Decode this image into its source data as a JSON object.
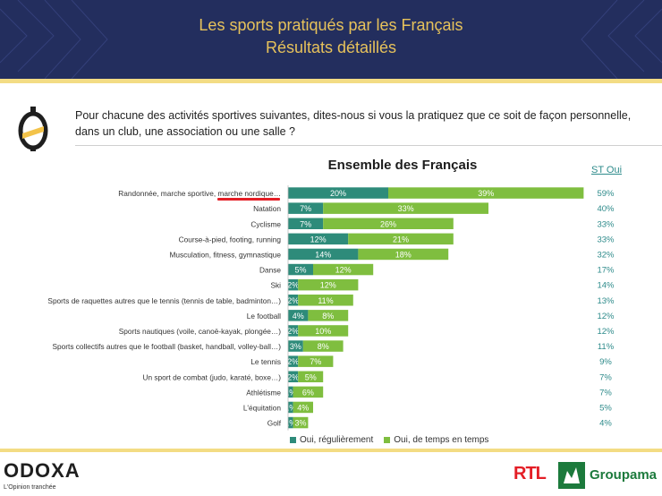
{
  "header": {
    "title_line1": "Les sports pratiqués par les Français",
    "title_line2": "Résultats détaillés"
  },
  "question": "Pour chacune des activités sportives suivantes, dites-nous si vous la pratiquez que ce soit de façon personnelle, dans un club, une association ou une salle ?",
  "chart_data": {
    "type": "bar",
    "orientation": "horizontal",
    "stacked": true,
    "title": "Ensemble des Français",
    "total_header": "ST Oui",
    "categories": [
      "Randonnée, marche sportive, marche nordique…",
      "Natation",
      "Cyclisme",
      "Course-à-pied, footing, running",
      "Musculation, fitness, gymnastique",
      "Danse",
      "Ski",
      "Sports de raquettes autres que le tennis (tennis de table, badminton…)",
      "Le football",
      "Sports nautiques (voile, canoë-kayak, plongée…)",
      "Sports collectifs autres que le football (basket, handball, volley-ball…)",
      "Le tennis",
      "Un sport de combat (judo, karaté, boxe…)",
      "Athlétisme",
      "L'équitation",
      "Golf"
    ],
    "series": [
      {
        "name": "Oui, régulièrement",
        "color": "#2e8b7a",
        "values": [
          20,
          7,
          7,
          12,
          14,
          5,
          2,
          2,
          4,
          2,
          3,
          2,
          2,
          1,
          1,
          1
        ]
      },
      {
        "name": "Oui, de temps en temps",
        "color": "#7fbe3f",
        "values": [
          39,
          33,
          26,
          21,
          18,
          12,
          12,
          11,
          8,
          10,
          8,
          7,
          5,
          6,
          4,
          3
        ]
      }
    ],
    "totals": [
      59,
      40,
      33,
      33,
      32,
      17,
      14,
      13,
      12,
      12,
      11,
      9,
      7,
      7,
      5,
      4
    ],
    "legend_position": "bottom",
    "grid": false
  },
  "legend": {
    "regulier": "Oui, régulièrement",
    "temps": "Oui, de temps en temps"
  },
  "footer": {
    "odoxa": "ODOXA",
    "odoxa_tagline": "L'Opinion tranchée",
    "rtl": "RTL",
    "groupama": "Groupama"
  }
}
